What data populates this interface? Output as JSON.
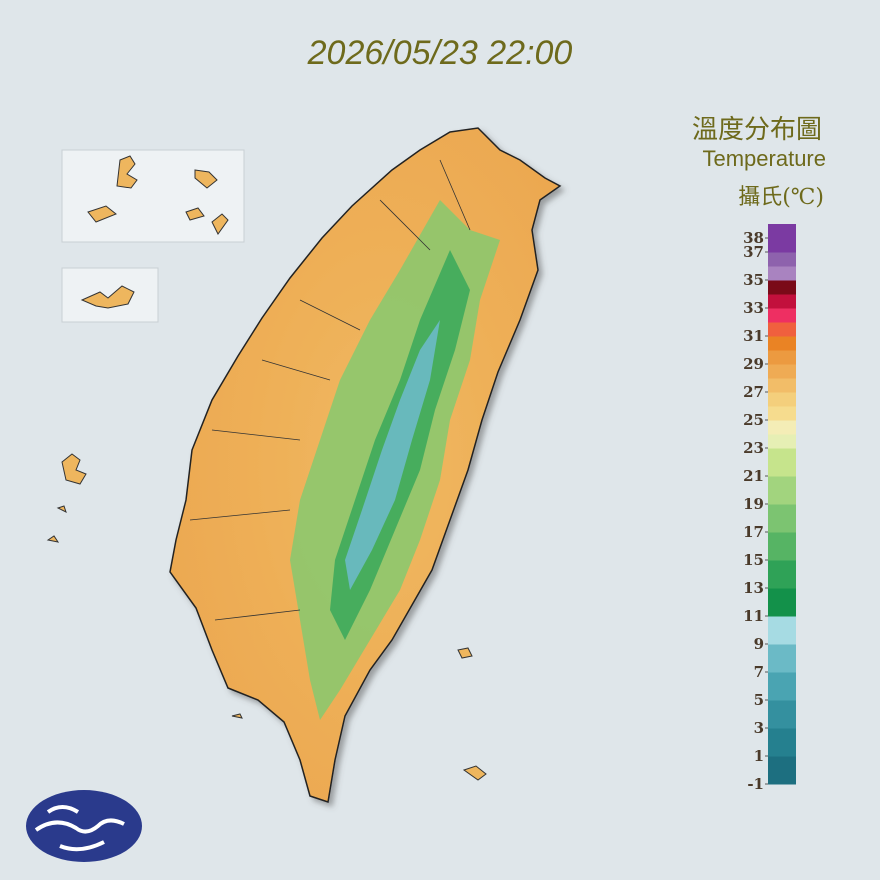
{
  "title": "2026/05/23 22:00",
  "legend": {
    "title_zh": "溫度分布圖",
    "title_en": "Temperature",
    "unit": "攝氏(℃)",
    "range": [
      -1,
      39
    ],
    "ticks": [
      38,
      37,
      35,
      33,
      31,
      29,
      27,
      25,
      23,
      21,
      19,
      17,
      15,
      13,
      11,
      9,
      7,
      5,
      3,
      1,
      -1
    ],
    "colors": [
      "#1d6f80",
      "#1d6f80",
      "#25808f",
      "#25808f",
      "#34909f",
      "#34909f",
      "#4aa4b2",
      "#4aa4b2",
      "#6bbac6",
      "#6bbac6",
      "#a6dbe3",
      "#a6dbe3",
      "#13914a",
      "#13914a",
      "#2fa257",
      "#2fa257",
      "#56b464",
      "#56b464",
      "#7cc471",
      "#7cc471",
      "#a2d47e",
      "#a2d47e",
      "#c6e48c",
      "#c6e48c",
      "#e6efb4",
      "#f4edb6",
      "#f6dc8e",
      "#f4cf7c",
      "#f2bd68",
      "#efab54",
      "#ec9a40",
      "#ea8324",
      "#f0603e",
      "#ee2f62",
      "#c2103c",
      "#7a0a18",
      "#a983c0",
      "#8e62ad",
      "#7b3aa2",
      "#7b3aa2"
    ]
  }
}
